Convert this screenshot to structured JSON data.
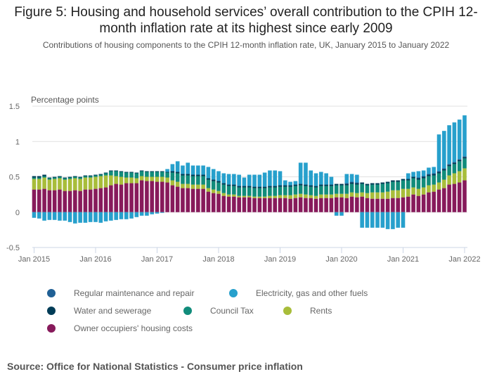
{
  "title": "Figure 5: Housing and household services’ overall contribution to the CPIH 12-month inflation rate at its highest since early 2009",
  "subtitle": "Contributions of housing components to the CPIH 12-month inflation rate, UK, January 2015 to January 2022",
  "source": "Source: Office for National Statistics - Consumer price inflation",
  "chart_data": {
    "type": "bar",
    "stacked": true,
    "title": "Figure 5: Housing and household services’ overall contribution to the CPIH 12-month inflation rate at its highest since early 2009",
    "subtitle": "Contributions of housing components to the CPIH 12-month inflation rate, UK, January 2015 to January 2022",
    "ylabel": "Percentage points",
    "xlabel": "",
    "ylim": [
      -0.5,
      1.5
    ],
    "yticks": [
      -0.5,
      0,
      0.5,
      1,
      1.5
    ],
    "ytick_labels": [
      "-0.5",
      "0",
      "0.5",
      "1",
      "1.5"
    ],
    "xtick_labels": [
      "Jan 2015",
      "Jan 2016",
      "Jan 2017",
      "Jan 2018",
      "Jan 2019",
      "Jan 2020",
      "Jan 2021",
      "Jan 2022"
    ],
    "xtick_month_index": [
      0,
      12,
      24,
      36,
      48,
      60,
      72,
      84
    ],
    "grid": true,
    "legend_position": "bottom",
    "start": "Jan 2015",
    "end": "Jan 2022",
    "n_months": 85,
    "series": [
      {
        "name": "Owner occupiers' housing costs",
        "color": "#871a5b",
        "values": [
          0.32,
          0.32,
          0.33,
          0.31,
          0.31,
          0.32,
          0.3,
          0.3,
          0.31,
          0.3,
          0.32,
          0.32,
          0.33,
          0.34,
          0.35,
          0.38,
          0.4,
          0.39,
          0.41,
          0.41,
          0.41,
          0.45,
          0.44,
          0.44,
          0.43,
          0.43,
          0.42,
          0.38,
          0.36,
          0.34,
          0.34,
          0.33,
          0.33,
          0.33,
          0.29,
          0.27,
          0.26,
          0.23,
          0.22,
          0.22,
          0.21,
          0.21,
          0.21,
          0.2,
          0.2,
          0.2,
          0.2,
          0.2,
          0.2,
          0.2,
          0.19,
          0.2,
          0.21,
          0.2,
          0.2,
          0.19,
          0.2,
          0.2,
          0.2,
          0.21,
          0.21,
          0.2,
          0.22,
          0.21,
          0.22,
          0.2,
          0.19,
          0.19,
          0.19,
          0.19,
          0.2,
          0.2,
          0.21,
          0.22,
          0.25,
          0.23,
          0.25,
          0.28,
          0.29,
          0.32,
          0.34,
          0.39,
          0.4,
          0.42,
          0.45
        ]
      },
      {
        "name": "Rents",
        "color": "#a8bd3a",
        "values": [
          0.15,
          0.15,
          0.16,
          0.15,
          0.16,
          0.16,
          0.16,
          0.17,
          0.17,
          0.17,
          0.17,
          0.17,
          0.17,
          0.17,
          0.17,
          0.14,
          0.11,
          0.11,
          0.08,
          0.08,
          0.07,
          0.06,
          0.06,
          0.06,
          0.07,
          0.07,
          0.07,
          0.07,
          0.07,
          0.06,
          0.06,
          0.06,
          0.06,
          0.06,
          0.05,
          0.05,
          0.04,
          0.04,
          0.03,
          0.03,
          0.02,
          0.02,
          0.02,
          0.02,
          0.02,
          0.02,
          0.03,
          0.03,
          0.04,
          0.04,
          0.05,
          0.05,
          0.05,
          0.05,
          0.04,
          0.04,
          0.05,
          0.05,
          0.05,
          0.05,
          0.05,
          0.06,
          0.06,
          0.06,
          0.06,
          0.07,
          0.09,
          0.09,
          0.09,
          0.1,
          0.11,
          0.11,
          0.12,
          0.11,
          0.1,
          0.1,
          0.1,
          0.1,
          0.1,
          0.1,
          0.12,
          0.13,
          0.15,
          0.16,
          0.17
        ]
      },
      {
        "name": "Council Tax",
        "color": "#118c7b",
        "values": [
          0.02,
          0.02,
          0.02,
          0.02,
          0.02,
          0.02,
          0.02,
          0.02,
          0.02,
          0.02,
          0.02,
          0.02,
          0.02,
          0.02,
          0.03,
          0.06,
          0.07,
          0.07,
          0.07,
          0.07,
          0.07,
          0.07,
          0.07,
          0.07,
          0.07,
          0.07,
          0.07,
          0.11,
          0.12,
          0.12,
          0.12,
          0.12,
          0.12,
          0.12,
          0.12,
          0.12,
          0.12,
          0.12,
          0.12,
          0.12,
          0.12,
          0.12,
          0.12,
          0.12,
          0.12,
          0.12,
          0.12,
          0.12,
          0.12,
          0.12,
          0.12,
          0.12,
          0.12,
          0.12,
          0.12,
          0.12,
          0.12,
          0.12,
          0.12,
          0.12,
          0.12,
          0.12,
          0.12,
          0.12,
          0.12,
          0.11,
          0.11,
          0.11,
          0.12,
          0.12,
          0.12,
          0.12,
          0.12,
          0.12,
          0.13,
          0.13,
          0.13,
          0.13,
          0.13,
          0.13,
          0.13,
          0.13,
          0.13,
          0.14,
          0.14
        ]
      },
      {
        "name": "Water and sewerage",
        "color": "#003c57",
        "values": [
          0.02,
          0.02,
          0.02,
          0.01,
          0.01,
          0.01,
          0.01,
          0.01,
          0.01,
          0.01,
          0.01,
          0.01,
          0.01,
          0.01,
          0.01,
          0.01,
          0.01,
          0.01,
          0.01,
          0.01,
          0.01,
          0.01,
          0.01,
          0.01,
          0.01,
          0.01,
          0.01,
          0.02,
          0.02,
          0.02,
          0.02,
          0.02,
          0.02,
          0.02,
          0.02,
          0.02,
          0.02,
          0.02,
          0.02,
          0.02,
          0.02,
          0.02,
          0.02,
          0.02,
          0.02,
          0.02,
          0.02,
          0.02,
          0.02,
          0.02,
          0.02,
          0.02,
          0.02,
          0.02,
          0.02,
          0.02,
          0.02,
          0.02,
          0.02,
          0.02,
          0.02,
          0.02,
          0.02,
          0.02,
          0.02,
          0.02,
          0.02,
          0.02,
          0.02,
          0.02,
          0.02,
          0.02,
          0.02,
          0.02,
          0.02,
          0.02,
          0.02,
          0.02,
          0.02,
          0.02,
          0.02,
          0.02,
          0.02,
          0.02,
          0.02
        ]
      },
      {
        "name": "Regular maintenance and repair",
        "color": "#206095",
        "values": [
          0.0,
          0.0,
          0.0,
          0.0,
          0.0,
          0.0,
          0.0,
          0.0,
          0.0,
          0.0,
          0.0,
          0.0,
          0.0,
          0.0,
          0.0,
          0.0,
          0.0,
          0.0,
          0.0,
          0.0,
          0.0,
          0.0,
          0.0,
          0.0,
          0.0,
          0.0,
          0.0,
          0.0,
          0.0,
          0.0,
          0.0,
          0.0,
          0.0,
          0.0,
          0.0,
          0.0,
          0.0,
          0.0,
          0.0,
          0.0,
          0.0,
          0.0,
          0.0,
          0.0,
          0.0,
          0.0,
          0.0,
          0.0,
          0.0,
          0.0,
          0.0,
          0.0,
          0.0,
          0.0,
          0.0,
          0.0,
          0.0,
          0.0,
          0.0,
          0.0,
          0.0,
          0.01,
          0.01,
          0.01,
          0.0,
          0.0,
          0.0,
          0.0,
          0.0,
          0.0,
          0.0,
          0.0,
          0.0,
          0.0,
          0.0,
          0.01,
          0.01,
          0.01,
          0.01,
          0.01,
          0.01,
          0.01,
          0.01,
          0.01,
          0.01
        ]
      },
      {
        "name": "Electricity, gas and other fuels",
        "color": "#27a0cc",
        "values": [
          -0.08,
          -0.09,
          -0.12,
          -0.11,
          -0.11,
          -0.12,
          -0.12,
          -0.14,
          -0.16,
          -0.15,
          -0.15,
          -0.14,
          -0.14,
          -0.15,
          -0.13,
          -0.12,
          -0.11,
          -0.1,
          -0.1,
          -0.09,
          -0.07,
          -0.05,
          -0.05,
          -0.03,
          -0.02,
          -0.01,
          0.04,
          0.1,
          0.15,
          0.12,
          0.16,
          0.13,
          0.13,
          0.13,
          0.16,
          0.15,
          0.14,
          0.14,
          0.15,
          0.15,
          0.16,
          0.12,
          0.16,
          0.17,
          0.17,
          0.2,
          0.22,
          0.22,
          0.2,
          0.07,
          0.05,
          0.05,
          0.3,
          0.31,
          0.21,
          0.18,
          0.18,
          0.16,
          0.11,
          -0.05,
          -0.05,
          0.13,
          0.11,
          0.11,
          -0.22,
          -0.22,
          -0.22,
          -0.22,
          -0.22,
          -0.24,
          -0.24,
          -0.22,
          -0.22,
          0.08,
          0.07,
          0.09,
          0.08,
          0.09,
          0.09,
          0.52,
          0.53,
          0.55,
          0.56,
          0.56,
          0.58
        ]
      }
    ]
  },
  "legend": {
    "items": [
      {
        "label": "Regular maintenance and repair",
        "color": "#206095"
      },
      {
        "label": "Electricity, gas and other fuels",
        "color": "#27a0cc"
      },
      {
        "label": "Water and sewerage",
        "color": "#003c57"
      },
      {
        "label": "Council Tax",
        "color": "#118c7b"
      },
      {
        "label": "Rents",
        "color": "#a8bd3a"
      },
      {
        "label": "Owner occupiers' housing costs",
        "color": "#871a5b"
      }
    ]
  }
}
